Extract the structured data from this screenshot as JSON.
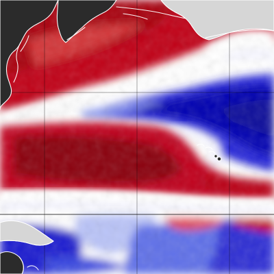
{
  "map": {
    "type": "sea-surface-temperature-anomaly",
    "palette": {
      "warm_strong": "#8b0000",
      "warm": "#c0001a",
      "warm_light": "#f3a2a2",
      "neutral": "#ffffff",
      "cool_light": "#b6c1f3",
      "cool": "#2b2be0",
      "cool_strong": "#0000a8",
      "land_dark": "#2b2b2b",
      "land_light": "#d6d6d6",
      "coastline": "#ffffff",
      "grid": "#000000"
    },
    "features": {
      "landmasses": [
        "japan-kurils-kamchatka-region",
        "aleutian-islands",
        "alaska-coast",
        "hawaiian-islands",
        "new-guinea",
        "australia-northeast"
      ]
    }
  }
}
